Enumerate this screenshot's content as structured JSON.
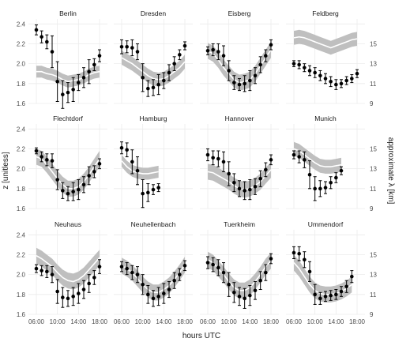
{
  "chart_data": {
    "type": "faceted-errorbar-ribbon",
    "xlabel": "hours UTC",
    "ylabel": "z [unitless]",
    "y2label": "approximate λ [km]",
    "x_ticks": [
      "06:00",
      "10:00",
      "14:00",
      "18:00"
    ],
    "x_tick_hours": [
      6,
      10,
      14,
      18
    ],
    "xlim": [
      4.5,
      19.5
    ],
    "ylim": [
      1.6,
      2.45
    ],
    "y_ticks": [
      1.6,
      1.8,
      2.0,
      2.2,
      2.4
    ],
    "y2_ticks": [
      9,
      11,
      13,
      15
    ],
    "y2_tick_positions_in_z": [
      1.6,
      1.8,
      2.0,
      2.2
    ],
    "grid": true,
    "colors": {
      "points": "#000000",
      "ribbon": "#bfbfbf",
      "ribbon_line": "#ffffff",
      "grid": "#ebebeb"
    },
    "hours": [
      6,
      7,
      8,
      9,
      10,
      11,
      12,
      13,
      14,
      15,
      16,
      17,
      18
    ],
    "panels": [
      {
        "name": "Berlin",
        "z": [
          2.34,
          2.27,
          2.22,
          2.12,
          1.82,
          1.69,
          1.71,
          1.74,
          1.81,
          1.86,
          1.92,
          1.99,
          2.08
        ],
        "z_err": [
          0.05,
          0.06,
          0.07,
          0.16,
          0.2,
          0.14,
          0.1,
          0.12,
          0.08,
          0.1,
          0.12,
          0.06,
          0.06
        ],
        "ribbon_mid": [
          1.92,
          1.92,
          1.9,
          1.89,
          1.87,
          1.84,
          1.82,
          1.83,
          1.84,
          1.86,
          1.89,
          1.91,
          1.92
        ],
        "ribbon_half": [
          0.06,
          0.06,
          0.06,
          0.06,
          0.06,
          0.06,
          0.06,
          0.06,
          0.06,
          0.06,
          0.06,
          0.06,
          0.06
        ]
      },
      {
        "name": "Dresden",
        "z": [
          2.17,
          2.17,
          2.16,
          2.12,
          1.86,
          1.75,
          1.76,
          1.79,
          1.83,
          1.91,
          2.0,
          2.09,
          2.18
        ],
        "z_err": [
          0.07,
          0.06,
          0.08,
          0.08,
          0.14,
          0.08,
          0.08,
          0.1,
          0.08,
          0.08,
          0.07,
          0.05,
          0.04
        ],
        "ribbon_mid": [
          2.06,
          2.03,
          2.0,
          1.96,
          1.92,
          1.88,
          1.85,
          1.84,
          1.85,
          1.88,
          1.92,
          1.96,
          2.02
        ],
        "ribbon_half": [
          0.07,
          0.07,
          0.07,
          0.07,
          0.07,
          0.07,
          0.07,
          0.07,
          0.07,
          0.07,
          0.07,
          0.07,
          0.07
        ]
      },
      {
        "name": "Eisberg",
        "z": [
          2.13,
          2.14,
          2.12,
          2.08,
          1.93,
          1.81,
          1.79,
          1.8,
          1.83,
          1.88,
          1.99,
          2.08,
          2.19
        ],
        "z_err": [
          0.04,
          0.06,
          0.08,
          0.1,
          0.1,
          0.07,
          0.06,
          0.08,
          0.1,
          0.08,
          0.08,
          0.06,
          0.05
        ],
        "ribbon_mid": [
          2.13,
          2.1,
          2.04,
          1.96,
          1.9,
          1.84,
          1.81,
          1.82,
          1.84,
          1.9,
          1.98,
          2.06,
          2.14
        ],
        "ribbon_half": [
          0.08,
          0.08,
          0.08,
          0.08,
          0.08,
          0.08,
          0.08,
          0.08,
          0.08,
          0.08,
          0.08,
          0.08,
          0.08
        ]
      },
      {
        "name": "Feldberg",
        "z": [
          2.0,
          1.99,
          1.96,
          1.93,
          1.91,
          1.88,
          1.85,
          1.82,
          1.79,
          1.8,
          1.83,
          1.85,
          1.9
        ],
        "z_err": [
          0.03,
          0.04,
          0.04,
          0.05,
          0.05,
          0.05,
          0.05,
          0.05,
          0.05,
          0.04,
          0.04,
          0.04,
          0.04
        ],
        "ribbon_mid": [
          2.26,
          2.27,
          2.26,
          2.24,
          2.22,
          2.2,
          2.18,
          2.16,
          2.18,
          2.2,
          2.22,
          2.24,
          2.25
        ],
        "ribbon_half": [
          0.07,
          0.07,
          0.07,
          0.07,
          0.07,
          0.07,
          0.07,
          0.07,
          0.07,
          0.07,
          0.07,
          0.07,
          0.07
        ]
      },
      {
        "name": "Flechtdorf",
        "z": [
          2.18,
          2.12,
          2.09,
          2.08,
          1.89,
          1.78,
          1.75,
          1.77,
          1.79,
          1.84,
          1.93,
          1.97,
          2.05
        ],
        "z_err": [
          0.03,
          0.05,
          0.06,
          0.07,
          0.1,
          0.08,
          0.07,
          0.09,
          0.1,
          0.08,
          0.09,
          0.06,
          0.05
        ],
        "ribbon_mid": [
          2.12,
          2.1,
          2.04,
          1.97,
          1.9,
          1.84,
          1.8,
          1.8,
          1.82,
          1.87,
          1.94,
          2.02,
          2.1
        ],
        "ribbon_half": [
          0.08,
          0.08,
          0.08,
          0.08,
          0.08,
          0.08,
          0.08,
          0.08,
          0.08,
          0.08,
          0.08,
          0.08,
          0.08
        ]
      },
      {
        "name": "Hamburg",
        "z": [
          2.21,
          2.19,
          2.07,
          1.98,
          1.75,
          1.76,
          1.79,
          1.81
        ],
        "z_err": [
          0.06,
          0.07,
          0.12,
          0.14,
          0.14,
          0.09,
          0.05,
          0.04
        ],
        "ribbon_mid": [
          2.08,
          2.02,
          1.98,
          1.96,
          1.95,
          1.95,
          1.96,
          1.97
        ],
        "ribbon_half": [
          0.06,
          0.06,
          0.06,
          0.06,
          0.06,
          0.06,
          0.06,
          0.06
        ],
        "hours": [
          6,
          7,
          8,
          9,
          10,
          11,
          12,
          13
        ]
      },
      {
        "name": "Hannover",
        "z": [
          2.14,
          2.11,
          2.1,
          2.07,
          1.95,
          1.86,
          1.8,
          1.78,
          1.79,
          1.82,
          1.9,
          1.99,
          2.09
        ],
        "z_err": [
          0.06,
          0.07,
          0.08,
          0.1,
          0.12,
          0.09,
          0.08,
          0.09,
          0.1,
          0.08,
          0.08,
          0.07,
          0.05
        ],
        "ribbon_mid": [
          1.97,
          1.96,
          1.93,
          1.9,
          1.87,
          1.83,
          1.8,
          1.79,
          1.8,
          1.83,
          1.87,
          1.93,
          1.99
        ],
        "ribbon_half": [
          0.08,
          0.08,
          0.08,
          0.08,
          0.08,
          0.08,
          0.08,
          0.08,
          0.08,
          0.08,
          0.08,
          0.08,
          0.08
        ]
      },
      {
        "name": "Munich",
        "z": [
          2.14,
          2.12,
          2.09,
          1.94,
          1.8,
          1.8,
          1.81,
          1.86,
          1.91,
          1.98
        ],
        "z_err": [
          0.04,
          0.06,
          0.08,
          0.14,
          0.12,
          0.08,
          0.06,
          0.06,
          0.05,
          0.04
        ],
        "ribbon_mid": [
          2.2,
          2.18,
          2.14,
          2.1,
          2.06,
          2.03,
          2.02,
          2.02,
          2.03,
          2.04
        ],
        "ribbon_half": [
          0.07,
          0.07,
          0.07,
          0.07,
          0.07,
          0.07,
          0.07,
          0.07,
          0.07,
          0.07
        ],
        "hours": [
          6,
          7,
          8,
          9,
          10,
          11,
          12,
          13,
          14,
          15
        ]
      },
      {
        "name": "Neuhaus",
        "z": [
          2.06,
          2.04,
          2.03,
          2.0,
          1.83,
          1.77,
          1.76,
          1.78,
          1.81,
          1.85,
          1.91,
          1.97,
          2.08
        ],
        "z_err": [
          0.04,
          0.05,
          0.06,
          0.08,
          0.12,
          0.1,
          0.08,
          0.09,
          0.1,
          0.09,
          0.09,
          0.07,
          0.07
        ],
        "ribbon_mid": [
          2.19,
          2.16,
          2.12,
          2.08,
          2.02,
          1.97,
          1.94,
          1.93,
          1.95,
          1.99,
          2.05,
          2.11,
          2.17
        ],
        "ribbon_half": [
          0.08,
          0.08,
          0.08,
          0.08,
          0.08,
          0.08,
          0.08,
          0.08,
          0.08,
          0.08,
          0.08,
          0.08,
          0.08
        ]
      },
      {
        "name": "Neuhellenbach",
        "z": [
          2.08,
          2.06,
          2.02,
          2.0,
          1.9,
          1.8,
          1.76,
          1.78,
          1.81,
          1.85,
          1.94,
          2.0,
          2.09
        ],
        "z_err": [
          0.05,
          0.06,
          0.07,
          0.08,
          0.1,
          0.09,
          0.08,
          0.09,
          0.1,
          0.08,
          0.08,
          0.06,
          0.05
        ],
        "ribbon_mid": [
          2.09,
          2.06,
          2.02,
          1.96,
          1.9,
          1.85,
          1.82,
          1.82,
          1.85,
          1.89,
          1.95,
          2.02,
          2.1
        ],
        "ribbon_half": [
          0.08,
          0.08,
          0.08,
          0.08,
          0.08,
          0.08,
          0.08,
          0.08,
          0.08,
          0.08,
          0.08,
          0.08,
          0.08
        ]
      },
      {
        "name": "Tuerkheim",
        "z": [
          2.12,
          2.1,
          2.07,
          2.02,
          1.9,
          1.82,
          1.78,
          1.76,
          1.79,
          1.84,
          1.94,
          2.02,
          2.16
        ],
        "z_err": [
          0.06,
          0.07,
          0.08,
          0.1,
          0.12,
          0.1,
          0.09,
          0.1,
          0.1,
          0.09,
          0.09,
          0.08,
          0.05
        ],
        "ribbon_mid": [
          2.15,
          2.12,
          2.06,
          2.0,
          1.93,
          1.87,
          1.84,
          1.84,
          1.87,
          1.93,
          2.0,
          2.08,
          2.14
        ],
        "ribbon_half": [
          0.08,
          0.08,
          0.08,
          0.08,
          0.08,
          0.08,
          0.08,
          0.08,
          0.08,
          0.08,
          0.08,
          0.08,
          0.08
        ]
      },
      {
        "name": "Ummendorf",
        "z": [
          2.22,
          2.21,
          2.15,
          2.03,
          1.8,
          1.76,
          1.78,
          1.79,
          1.8,
          1.83,
          1.88,
          1.98
        ],
        "z_err": [
          0.06,
          0.07,
          0.08,
          0.1,
          0.1,
          0.06,
          0.05,
          0.05,
          0.05,
          0.05,
          0.06,
          0.06
        ],
        "ribbon_mid": [
          2.12,
          2.06,
          1.98,
          1.9,
          1.84,
          1.81,
          1.8,
          1.8,
          1.81,
          1.83,
          1.86,
          1.9
        ],
        "ribbon_half": [
          0.08,
          0.08,
          0.08,
          0.08,
          0.08,
          0.08,
          0.08,
          0.08,
          0.08,
          0.08,
          0.08,
          0.08
        ],
        "hours": [
          6,
          7,
          8,
          9,
          10,
          11,
          12,
          13,
          14,
          15,
          16,
          17
        ]
      }
    ]
  }
}
